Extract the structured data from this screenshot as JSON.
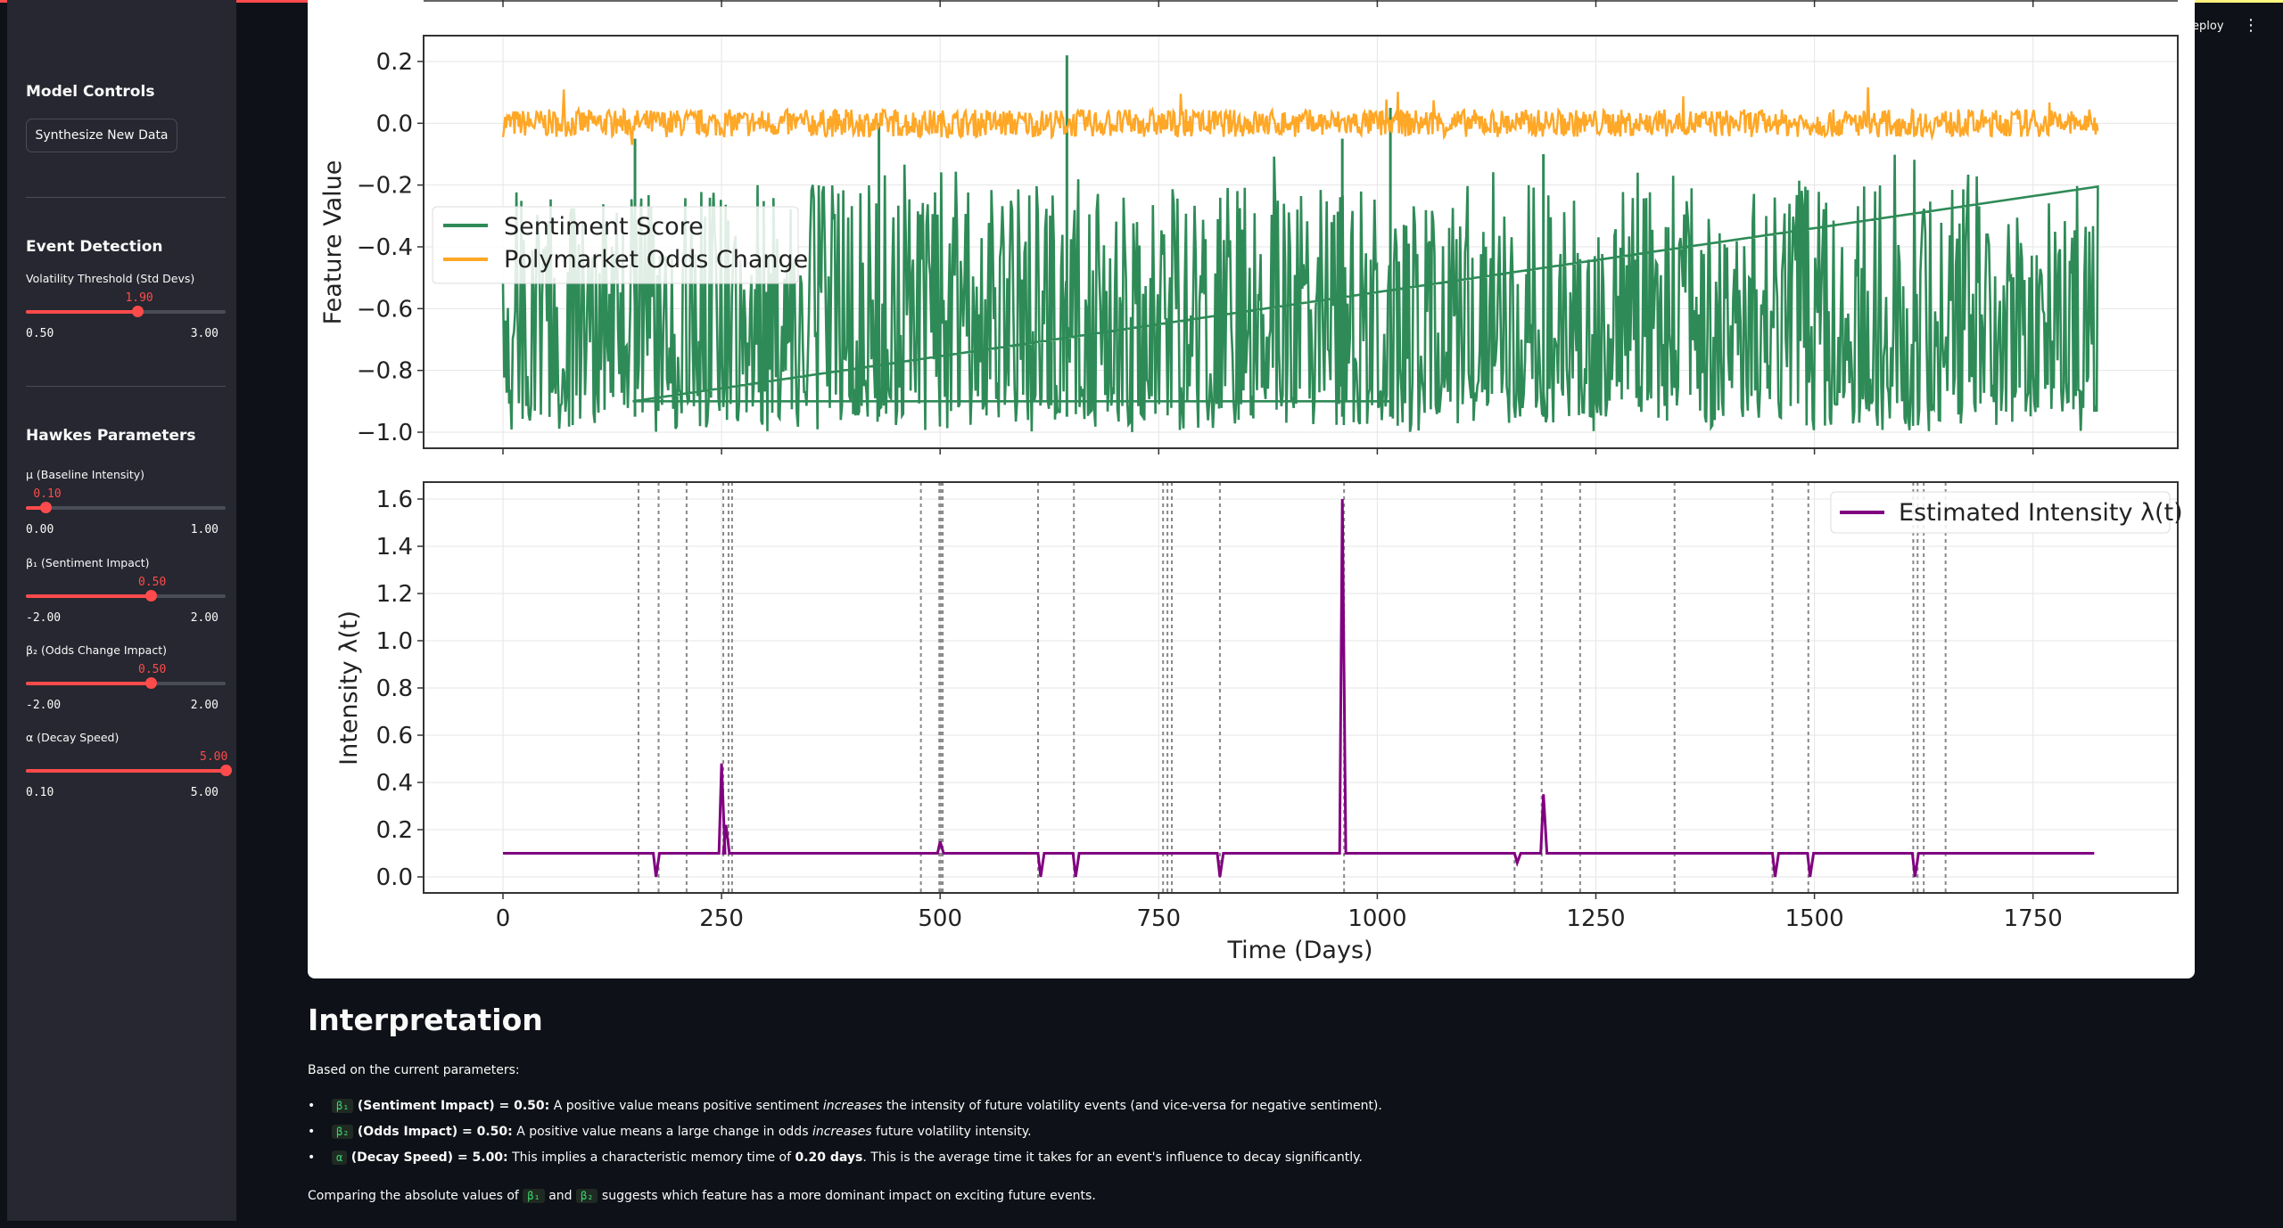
{
  "sidebar": {
    "title": "Model Controls",
    "button": "Synthesize New Data",
    "event_header": "Event Detection",
    "hawkes_header": "Hawkes Parameters",
    "sliders": [
      {
        "label": "Volatility Threshold (Std Devs)",
        "value": "1.90",
        "min": "0.50",
        "max": "3.00",
        "fraction": 0.56
      },
      {
        "label": "μ (Baseline Intensity)",
        "value": "0.10",
        "min": "0.00",
        "max": "1.00",
        "fraction": 0.1
      },
      {
        "label": "β₁ (Sentiment Impact)",
        "value": "0.50",
        "min": "-2.00",
        "max": "2.00",
        "fraction": 0.625
      },
      {
        "label": "β₂ (Odds Change Impact)",
        "value": "0.50",
        "min": "-2.00",
        "max": "2.00",
        "fraction": 0.625
      },
      {
        "label": "α (Decay Speed)",
        "value": "5.00",
        "min": "0.10",
        "max": "5.00",
        "fraction": 1.0
      }
    ]
  },
  "header": {
    "deploy": "eploy"
  },
  "chart_data": [
    {
      "type": "line",
      "ylabel": "Feature Value",
      "ylim": [
        -1.0,
        0.2
      ],
      "yticks": [
        "0.2",
        "0.0",
        "−0.2",
        "−0.4",
        "−0.6",
        "−0.8",
        "−1.0"
      ],
      "legend": "top-left",
      "colors": {
        "sentiment": "#2e8b57",
        "odds": "#ffa726"
      },
      "series": [
        {
          "name": "Sentiment Score",
          "note": "noisy series, mostly between -1.0 and -0.3, spikes up to 0.2 near day 645"
        },
        {
          "name": "Polymarket Odds Change",
          "note": "noisy series around 0.0 (about -0.05 to 0.05)"
        }
      ]
    },
    {
      "type": "line",
      "xlabel": "Time (Days)",
      "ylabel": "Intensity λ(t)",
      "ylim": [
        0.0,
        1.6
      ],
      "yticks": [
        "1.6",
        "1.4",
        "1.2",
        "1.0",
        "0.8",
        "0.6",
        "0.4",
        "0.2",
        "0.0"
      ],
      "xticks": [
        "0",
        "250",
        "500",
        "750",
        "1000",
        "1250",
        "1500",
        "1750"
      ],
      "legend": "top-right",
      "colors": {
        "intensity": "#800080"
      },
      "series": [
        {
          "name": "Estimated Intensity λ(t)",
          "x": [
            0,
            150,
            175,
            250,
            255,
            500,
            615,
            655,
            820,
            960,
            1160,
            1190,
            1455,
            1495,
            1615,
            1820
          ],
          "y": [
            0.1,
            0.1,
            0.0,
            0.48,
            0.22,
            0.15,
            0.0,
            0.0,
            0.0,
            1.6,
            0.06,
            0.35,
            0.0,
            0.0,
            0.0,
            0.1
          ]
        }
      ],
      "event_lines_x": [
        155,
        178,
        210,
        252,
        258,
        262,
        478,
        499,
        501,
        503,
        612,
        653,
        755,
        760,
        765,
        820,
        962,
        1157,
        1188,
        1232,
        1340,
        1452,
        1493,
        1613,
        1618,
        1625,
        1650
      ]
    }
  ],
  "interpretation": {
    "title": "Interpretation",
    "intro": "Based on the current parameters:",
    "items": [
      {
        "code": "β₁",
        "bold": "(Sentiment Impact) = 0.50:",
        "text": "A positive value means positive sentiment ",
        "em": "increases",
        "text2": " the intensity of future volatility events (and vice-versa for negative sentiment)."
      },
      {
        "code": "β₂",
        "bold": "(Odds Impact) = 0.50:",
        "text": "A positive value means a large change in odds ",
        "em": "increases",
        "text2": " future volatility intensity."
      },
      {
        "code": "α",
        "bold": "(Decay Speed) = 5.00:",
        "text": "This implies a characteristic memory time of ",
        "strong": "0.20 days",
        "text2": ". This is the average time it takes for an event's influence to decay significantly."
      }
    ],
    "footer_a": "Comparing the absolute values of ",
    "footer_code1": "β₁",
    "footer_and": " and ",
    "footer_code2": "β₂",
    "footer_b": " suggests which feature has a more dominant impact on exciting future events."
  }
}
